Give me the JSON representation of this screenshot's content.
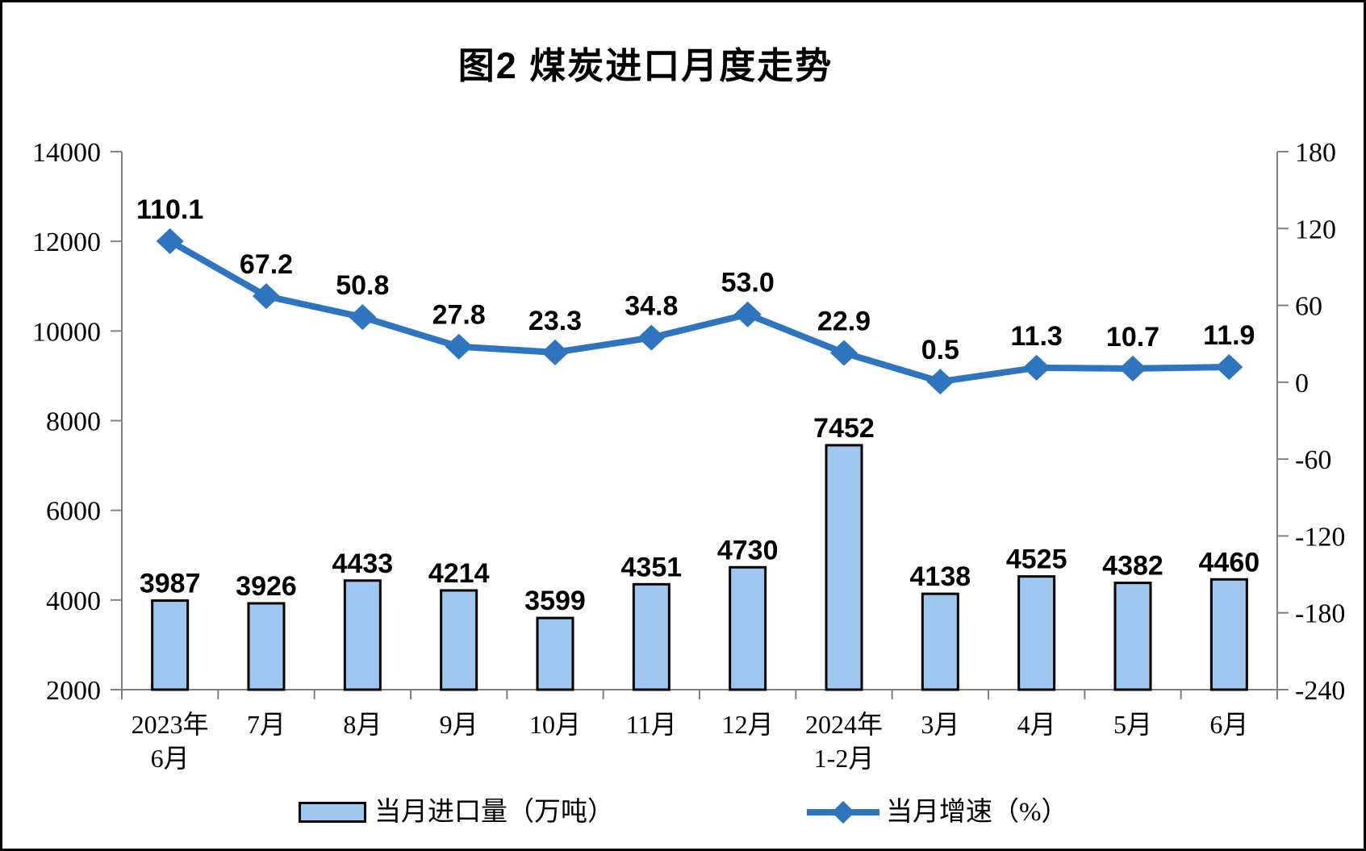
{
  "page": {
    "title": "图2 煤炭进口月度走势"
  },
  "legend": {
    "items": [
      {
        "label": "当月进口量（万吨）",
        "marker": "bar-swatch"
      },
      {
        "label": "当月增速（%）",
        "marker": "line-diamond-swatch"
      }
    ]
  },
  "colors": {
    "bar_fill": "#9FC7EF",
    "bar_border": "#000000",
    "line": "#2F74BE",
    "axis_line": "#808080",
    "text": "#000000",
    "background": "#FFFFFF",
    "frame": "#000000"
  },
  "chart_data": {
    "type": "combo",
    "title": "图2 煤炭进口月度走势",
    "categories": [
      [
        "2023年",
        "6月"
      ],
      [
        "7月"
      ],
      [
        "8月"
      ],
      [
        "9月"
      ],
      [
        "10月"
      ],
      [
        "11月"
      ],
      [
        "12月"
      ],
      [
        "2024年",
        "1-2月"
      ],
      [
        "3月"
      ],
      [
        "4月"
      ],
      [
        "5月"
      ],
      [
        "6月"
      ]
    ],
    "series": [
      {
        "name": "当月进口量（万吨）",
        "type": "bar",
        "axis": "left",
        "values": [
          3987,
          3926,
          4433,
          4214,
          3599,
          4351,
          4730,
          7452,
          4138,
          4525,
          4382,
          4460
        ],
        "labels": [
          "3987",
          "3926",
          "4433",
          "4214",
          "3599",
          "4351",
          "4730",
          "7452",
          "4138",
          "4525",
          "4382",
          "4460"
        ]
      },
      {
        "name": "当月增速（%）",
        "type": "line",
        "axis": "right",
        "values": [
          110.1,
          67.2,
          50.8,
          27.8,
          23.3,
          34.8,
          53.0,
          22.9,
          0.5,
          11.3,
          10.7,
          11.9
        ],
        "labels": [
          "110.1",
          "67.2",
          "50.8",
          "27.8",
          "23.3",
          "34.8",
          "53.0",
          "22.9",
          "0.5",
          "11.3",
          "10.7",
          "11.9"
        ]
      }
    ],
    "left_axis": {
      "min": 2000,
      "max": 14000,
      "tick_values": [
        14000,
        12000,
        10000,
        8000,
        6000,
        4000,
        2000
      ],
      "tick_labels": [
        "14000",
        "12000",
        "10000",
        "8000",
        "6000",
        "4000",
        "2000"
      ]
    },
    "right_axis": {
      "min": -240,
      "max": 180,
      "tick_values": [
        180,
        120,
        60,
        0,
        -60,
        -120,
        -180,
        -240
      ],
      "tick_labels": [
        "180",
        "120",
        "60",
        "0",
        "-60",
        "-120",
        "-180",
        "-240"
      ]
    },
    "grid": false,
    "legend_position": "bottom"
  }
}
